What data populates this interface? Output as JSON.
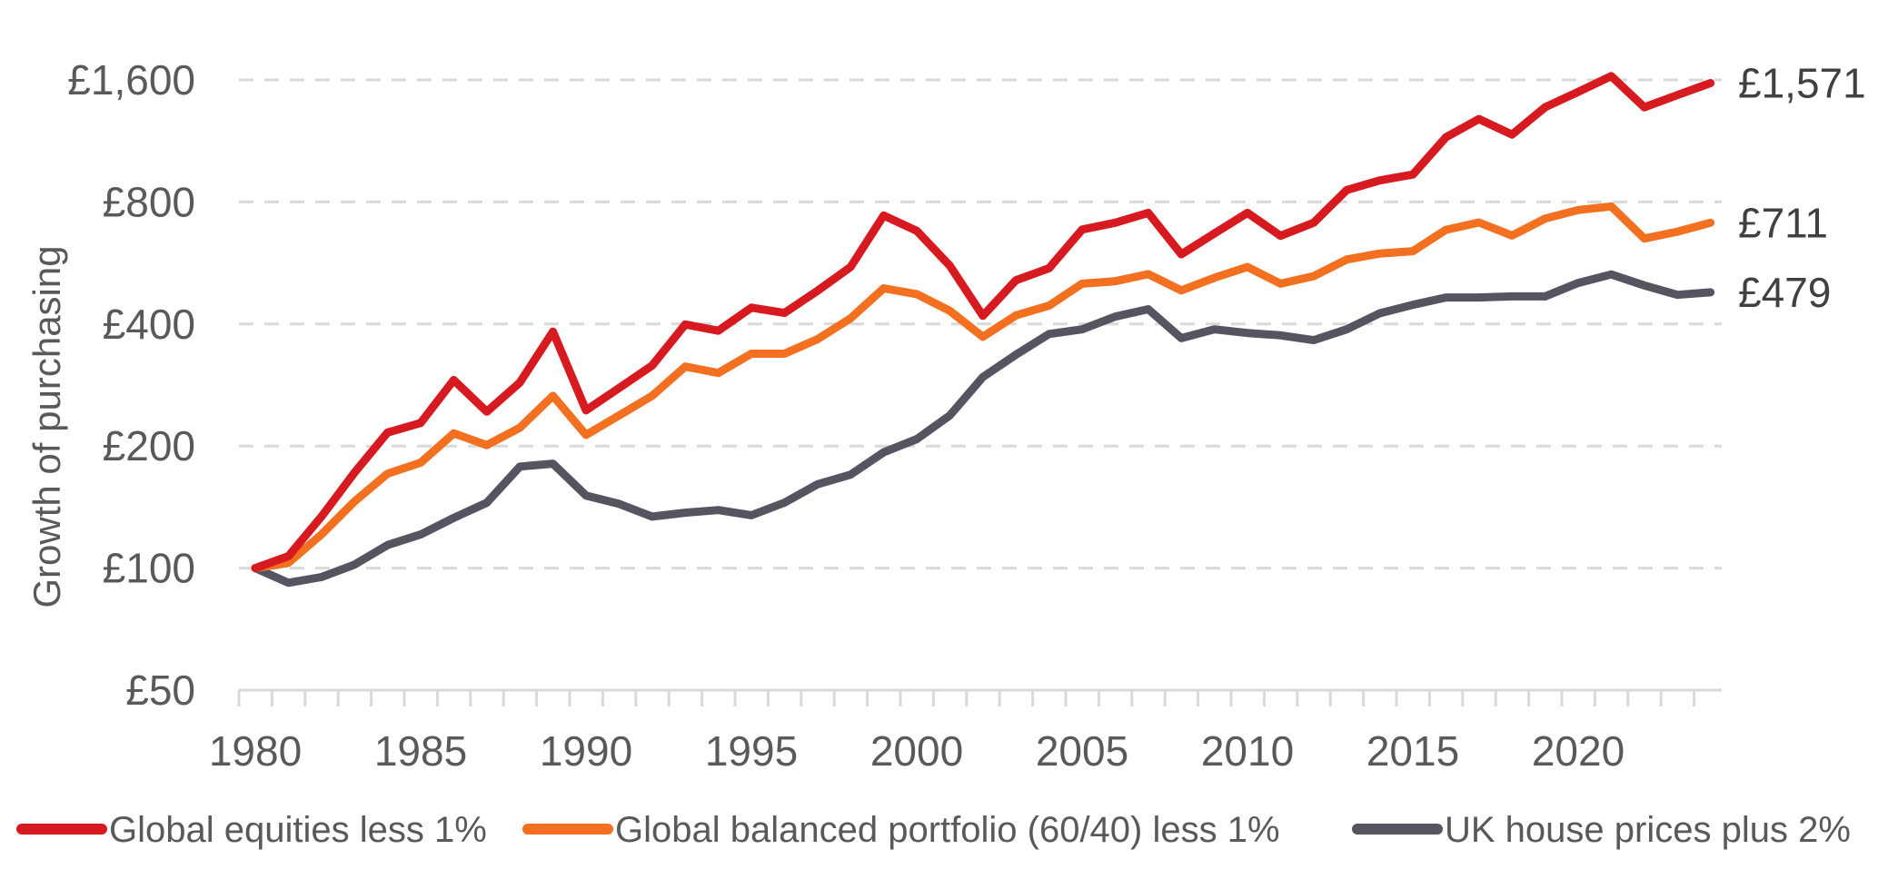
{
  "chart_data": {
    "type": "line",
    "title": "",
    "xlabel": "",
    "ylabel": "Growth of purchasing",
    "yscale": "log2",
    "ylim": [
      50,
      1600
    ],
    "xlim": [
      1980,
      2024
    ],
    "grid": true,
    "legend_position": "bottom",
    "y_ticks": [
      {
        "value": 50,
        "label": "£50"
      },
      {
        "value": 100,
        "label": "£100"
      },
      {
        "value": 200,
        "label": "£200"
      },
      {
        "value": 400,
        "label": "£400"
      },
      {
        "value": 800,
        "label": "£800"
      },
      {
        "value": 1600,
        "label": "£1,600"
      }
    ],
    "x_ticks": [
      {
        "value": 1980,
        "label": "1980"
      },
      {
        "value": 1985,
        "label": "1985"
      },
      {
        "value": 1990,
        "label": "1990"
      },
      {
        "value": 1995,
        "label": "1995"
      },
      {
        "value": 2000,
        "label": "2000"
      },
      {
        "value": 2005,
        "label": "2005"
      },
      {
        "value": 2010,
        "label": "2010"
      },
      {
        "value": 2015,
        "label": "2015"
      },
      {
        "value": 2020,
        "label": "2020"
      }
    ],
    "x": [
      1980,
      1981,
      1982,
      1983,
      1984,
      1985,
      1986,
      1987,
      1988,
      1989,
      1990,
      1991,
      1992,
      1993,
      1994,
      1995,
      1996,
      1997,
      1998,
      1999,
      2000,
      2001,
      2002,
      2003,
      2004,
      2005,
      2006,
      2007,
      2008,
      2009,
      2010,
      2011,
      2012,
      2013,
      2014,
      2015,
      2016,
      2017,
      2018,
      2019,
      2020,
      2021,
      2022,
      2023,
      2024
    ],
    "series": [
      {
        "name": "Global equities less 1%",
        "color": "#d71920",
        "end_label": "£1,571",
        "values": [
          100,
          107,
          134,
          172,
          216,
          228,
          291,
          243,
          287,
          383,
          245,
          278,
          316,
          399,
          385,
          439,
          426,
          483,
          553,
          741,
          679,
          557,
          419,
          513,
          549,
          684,
          711,
          752,
          594,
          669,
          752,
          660,
          711,
          856,
          904,
          935,
          1155,
          1281,
          1173,
          1370,
          1495,
          1635,
          1370,
          1468,
          1571
        ]
      },
      {
        "name": "Global balanced portfolio (60/40) less 1%",
        "color": "#f37021",
        "end_label": "£711",
        "values": [
          100,
          103,
          121,
          146,
          171,
          182,
          215,
          201,
          222,
          266,
          213,
          238,
          266,
          314,
          303,
          338,
          338,
          367,
          413,
          490,
          474,
          431,
          372,
          420,
          444,
          503,
          510,
          531,
          484,
          520,
          553,
          503,
          525,
          577,
          597,
          605,
          683,
          712,
          661,
          728,
          764,
          780,
          650,
          676,
          711
        ]
      },
      {
        "name": "UK house prices plus 2%",
        "color": "#555562",
        "end_label": "£479",
        "values": [
          100,
          92,
          95,
          102,
          114,
          121,
          133,
          145,
          178,
          181,
          151,
          144,
          134,
          137,
          139,
          135,
          145,
          161,
          170,
          193,
          208,
          238,
          296,
          336,
          378,
          388,
          417,
          435,
          369,
          388,
          380,
          375,
          365,
          388,
          425,
          446,
          465,
          465,
          468,
          468,
          505,
          530,
          498,
          472,
          479
        ]
      }
    ]
  }
}
